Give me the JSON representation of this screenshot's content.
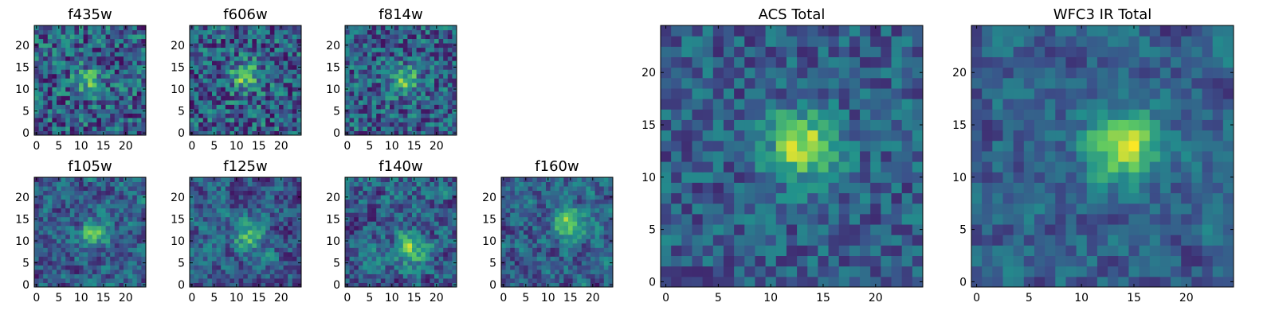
{
  "figure": {
    "colormap": [
      "#440154",
      "#3b528b",
      "#21918c",
      "#5ec962",
      "#fde725"
    ]
  },
  "chart_data": [
    {
      "type": "heatmap",
      "title": "f435w",
      "grid_size": 25,
      "xticks": [
        0,
        5,
        10,
        15,
        20
      ],
      "yticks": [
        0,
        5,
        10,
        15,
        20
      ],
      "peak": [
        12,
        12
      ],
      "peak_strength": 0.35,
      "noise": 0.55,
      "smoothness": 0,
      "seed": 11
    },
    {
      "type": "heatmap",
      "title": "f606w",
      "grid_size": 25,
      "xticks": [
        0,
        5,
        10,
        15,
        20
      ],
      "yticks": [
        0,
        5,
        10,
        15,
        20
      ],
      "peak": [
        12,
        13
      ],
      "peak_strength": 0.45,
      "noise": 0.55,
      "smoothness": 0,
      "seed": 23
    },
    {
      "type": "heatmap",
      "title": "f814w",
      "grid_size": 25,
      "xticks": [
        0,
        5,
        10,
        15,
        20
      ],
      "yticks": [
        0,
        5,
        10,
        15,
        20
      ],
      "peak": [
        13,
        12
      ],
      "peak_strength": 0.4,
      "noise": 0.5,
      "smoothness": 0,
      "seed": 37
    },
    {
      "type": "heatmap",
      "title": "f105w",
      "grid_size": 25,
      "xticks": [
        0,
        5,
        10,
        15,
        20
      ],
      "yticks": [
        0,
        5,
        10,
        15,
        20
      ],
      "peak": [
        13,
        12
      ],
      "peak_strength": 0.45,
      "noise": 0.5,
      "smoothness": 1,
      "seed": 41
    },
    {
      "type": "heatmap",
      "title": "f125w",
      "grid_size": 25,
      "xticks": [
        0,
        5,
        10,
        15,
        20
      ],
      "yticks": [
        0,
        5,
        10,
        15,
        20
      ],
      "peak": [
        13,
        11
      ],
      "peak_strength": 0.4,
      "noise": 0.5,
      "smoothness": 1,
      "seed": 53
    },
    {
      "type": "heatmap",
      "title": "f140w",
      "grid_size": 25,
      "xticks": [
        0,
        5,
        10,
        15,
        20
      ],
      "yticks": [
        0,
        5,
        10,
        15,
        20
      ],
      "peak": [
        14,
        8
      ],
      "peak_strength": 0.45,
      "noise": 0.5,
      "smoothness": 1,
      "seed": 67
    },
    {
      "type": "heatmap",
      "title": "f160w",
      "grid_size": 25,
      "xticks": [
        0,
        5,
        10,
        15,
        20
      ],
      "yticks": [
        0,
        5,
        10,
        15,
        20
      ],
      "peak": [
        15,
        14
      ],
      "peak_strength": 0.55,
      "noise": 0.5,
      "smoothness": 1,
      "seed": 79
    },
    {
      "type": "heatmap",
      "title": "ACS Total",
      "grid_size": 25,
      "xticks": [
        0,
        5,
        10,
        15,
        20
      ],
      "yticks": [
        0,
        5,
        10,
        15,
        20
      ],
      "peak": [
        13,
        13
      ],
      "peak_strength": 0.6,
      "noise": 0.35,
      "smoothness": 0,
      "seed": 97
    },
    {
      "type": "heatmap",
      "title": "WFC3 IR Total",
      "grid_size": 25,
      "xticks": [
        0,
        5,
        10,
        15,
        20
      ],
      "yticks": [
        0,
        5,
        10,
        15,
        20
      ],
      "peak": [
        14,
        13
      ],
      "peak_strength": 0.6,
      "noise": 0.35,
      "smoothness": 1,
      "seed": 113
    }
  ]
}
